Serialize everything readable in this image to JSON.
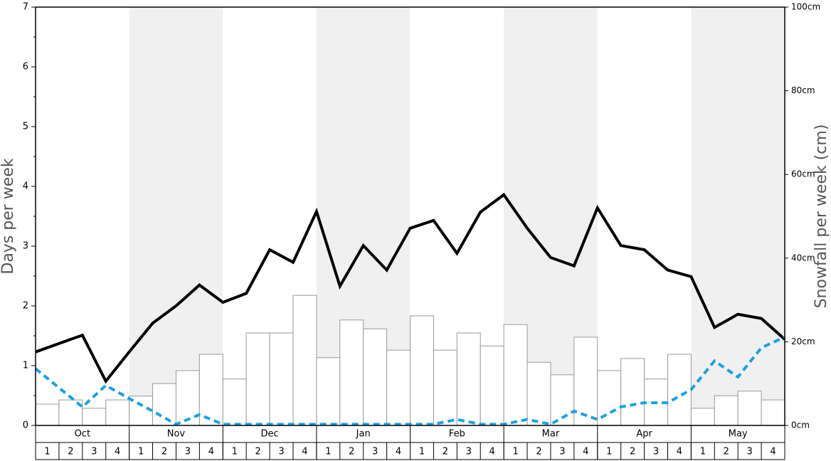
{
  "chart_data": {
    "type": "bar",
    "y_label": "Days per week",
    "y2_label": "Snowfall per week (cm)",
    "months": [
      "Oct",
      "Nov",
      "Dec",
      "Jan",
      "Feb",
      "Mar",
      "Apr",
      "May"
    ],
    "categories": [
      "1",
      "2",
      "3",
      "4",
      "1",
      "2",
      "3",
      "4",
      "1",
      "2",
      "3",
      "4",
      "1",
      "2",
      "3",
      "4",
      "1",
      "2",
      "3",
      "4",
      "1",
      "2",
      "3",
      "4",
      "1",
      "2",
      "3",
      "4",
      "1",
      "2",
      "3",
      "4"
    ],
    "shade_color": "#f0f0f0",
    "ylim": [
      0,
      7
    ],
    "yticks": [
      0,
      1,
      2,
      3,
      4,
      5,
      6,
      7
    ],
    "yminorticks": [
      0.5,
      1.5,
      2.5,
      3.5,
      4.5,
      5.5,
      6.5
    ],
    "y2lim": [
      0,
      100
    ],
    "y2ticks": [
      {
        "value": 0,
        "label": "0cm"
      },
      {
        "value": 20,
        "label": "20cm"
      },
      {
        "value": 40,
        "label": "40cm"
      },
      {
        "value": 60,
        "label": "60cm"
      },
      {
        "value": 80,
        "label": "80cm"
      },
      {
        "value": 100,
        "label": "100cm"
      }
    ],
    "bars": {
      "axis": "y2",
      "color": "#ffffff",
      "edge_color": "#999999",
      "values": [
        5.1,
        6.1,
        4.1,
        6.1,
        7.0,
        10.0,
        13.1,
        17.0,
        11.1,
        22.1,
        22.1,
        31.1,
        16.2,
        25.2,
        23.1,
        18.0,
        26.2,
        18.0,
        22.1,
        19.0,
        24.1,
        15.1,
        12.1,
        21.1,
        13.1,
        16.0,
        11.1,
        17.0,
        4.1,
        7.1,
        8.2,
        6.1
      ]
    },
    "series": [
      {
        "color": "#000000",
        "dashed": false,
        "x": [
          0,
          1,
          2,
          3,
          4,
          5,
          6,
          7,
          8,
          9,
          10,
          11,
          12,
          13,
          14,
          15,
          16,
          17,
          18,
          19,
          20,
          21,
          22,
          23,
          24,
          25,
          26,
          27,
          28,
          29,
          30,
          31,
          32
        ],
        "values": [
          1.23,
          1.37,
          1.51,
          0.74,
          1.23,
          1.71,
          2.0,
          2.35,
          2.06,
          2.21,
          2.94,
          2.73,
          3.58,
          2.33,
          3.01,
          2.6,
          3.3,
          3.43,
          2.88,
          3.57,
          3.86,
          3.3,
          2.81,
          2.67,
          3.64,
          3.01,
          2.94,
          2.6,
          2.49,
          1.64,
          1.86,
          1.79,
          1.44
        ]
      },
      {
        "color": "#1ba1e2",
        "dashed": true,
        "x": [
          0,
          1,
          2,
          3,
          4,
          5,
          6,
          7,
          8,
          9,
          10,
          11,
          12,
          13,
          14,
          15,
          16,
          17,
          18,
          19,
          20,
          21,
          22,
          23,
          24,
          25,
          26,
          27,
          28,
          29,
          30,
          31,
          32
        ],
        "values": [
          0.95,
          0.63,
          0.31,
          0.67,
          0.45,
          0.24,
          0.02,
          0.18,
          0.02,
          0.02,
          0.02,
          0.02,
          0.02,
          0.02,
          0.02,
          0.02,
          0.02,
          0.02,
          0.1,
          0.02,
          0.02,
          0.1,
          0.02,
          0.24,
          0.1,
          0.31,
          0.38,
          0.38,
          0.6,
          1.08,
          0.81,
          1.3,
          1.48
        ]
      }
    ]
  }
}
